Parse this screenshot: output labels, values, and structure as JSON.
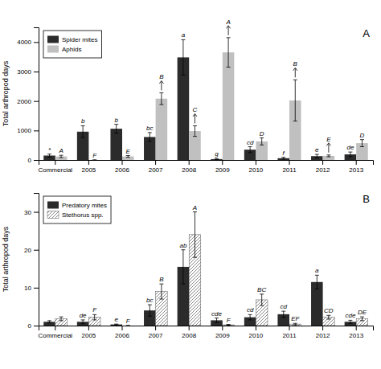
{
  "chart_data": [
    {
      "type": "bar",
      "title": "A",
      "categories": [
        "Commercial",
        "2005",
        "2006",
        "2007",
        "2008",
        "2009",
        "2010",
        "2011",
        "2012",
        "2013"
      ],
      "ylabel": "Total arthropod days",
      "ylim": [
        0,
        4500
      ],
      "yticks": [
        0,
        1000,
        2000,
        3000,
        4000
      ],
      "legend": "upper left",
      "series": [
        {
          "name": "Spider mites",
          "color": "#2b2b2b",
          "values": [
            150,
            960,
            1060,
            780,
            3480,
            30,
            350,
            60,
            130,
            190
          ],
          "errors": [
            50,
            200,
            150,
            150,
            600,
            15,
            100,
            30,
            60,
            80
          ],
          "annotations": [
            "*",
            "b",
            "b",
            "bc",
            "a",
            "g",
            "cd",
            "f",
            "e",
            "de"
          ]
        },
        {
          "name": "Aphids",
          "color": "#c0c0c0",
          "values": [
            120,
            0,
            120,
            2080,
            980,
            3650,
            630,
            2020,
            140,
            570
          ],
          "errors": [
            40,
            0,
            30,
            200,
            180,
            500,
            120,
            700,
            30,
            120
          ],
          "annotations": [
            "A",
            "F",
            "E",
            "B",
            "C",
            "A",
            "D",
            "B",
            "E",
            "D"
          ],
          "annotation_arrows": [
            false,
            false,
            false,
            true,
            true,
            true,
            false,
            true,
            true,
            false
          ]
        }
      ]
    },
    {
      "type": "bar",
      "title": "B",
      "categories": [
        "Commercial",
        "2005",
        "2006",
        "2007",
        "2008",
        "2009",
        "2010",
        "2011",
        "2012",
        "2013"
      ],
      "ylabel": "Total arthropod days",
      "ylim": [
        0,
        35
      ],
      "yticks": [
        0,
        10,
        20,
        30
      ],
      "legend": "upper left",
      "series": [
        {
          "name": "Predatory mites",
          "color": "#2b2b2b",
          "values": [
            1.0,
            1.0,
            0.3,
            4.0,
            15.5,
            1.4,
            2.2,
            3.0,
            11.5,
            1.0
          ],
          "errors": [
            0.3,
            0.5,
            0.1,
            1.5,
            4.5,
            0.6,
            0.7,
            0.8,
            1.8,
            0.4
          ],
          "annotations": [
            null,
            "de",
            "e",
            "bc",
            "ab",
            "cde",
            "cd",
            "cd",
            "a",
            "cde"
          ]
        },
        {
          "name": "Stethorus spp.",
          "color": "#ffffff",
          "values": [
            1.8,
            2.2,
            0.0,
            9.0,
            24.0,
            0.2,
            6.8,
            0.4,
            2.2,
            1.8
          ],
          "errors": [
            0.5,
            0.7,
            0.0,
            2.0,
            6.0,
            0.1,
            1.5,
            0.2,
            0.5,
            0.5
          ],
          "annotations": [
            null,
            "F",
            "F",
            "B",
            "A",
            "F",
            "BC",
            "EF",
            "CD",
            "DE"
          ]
        }
      ]
    }
  ]
}
